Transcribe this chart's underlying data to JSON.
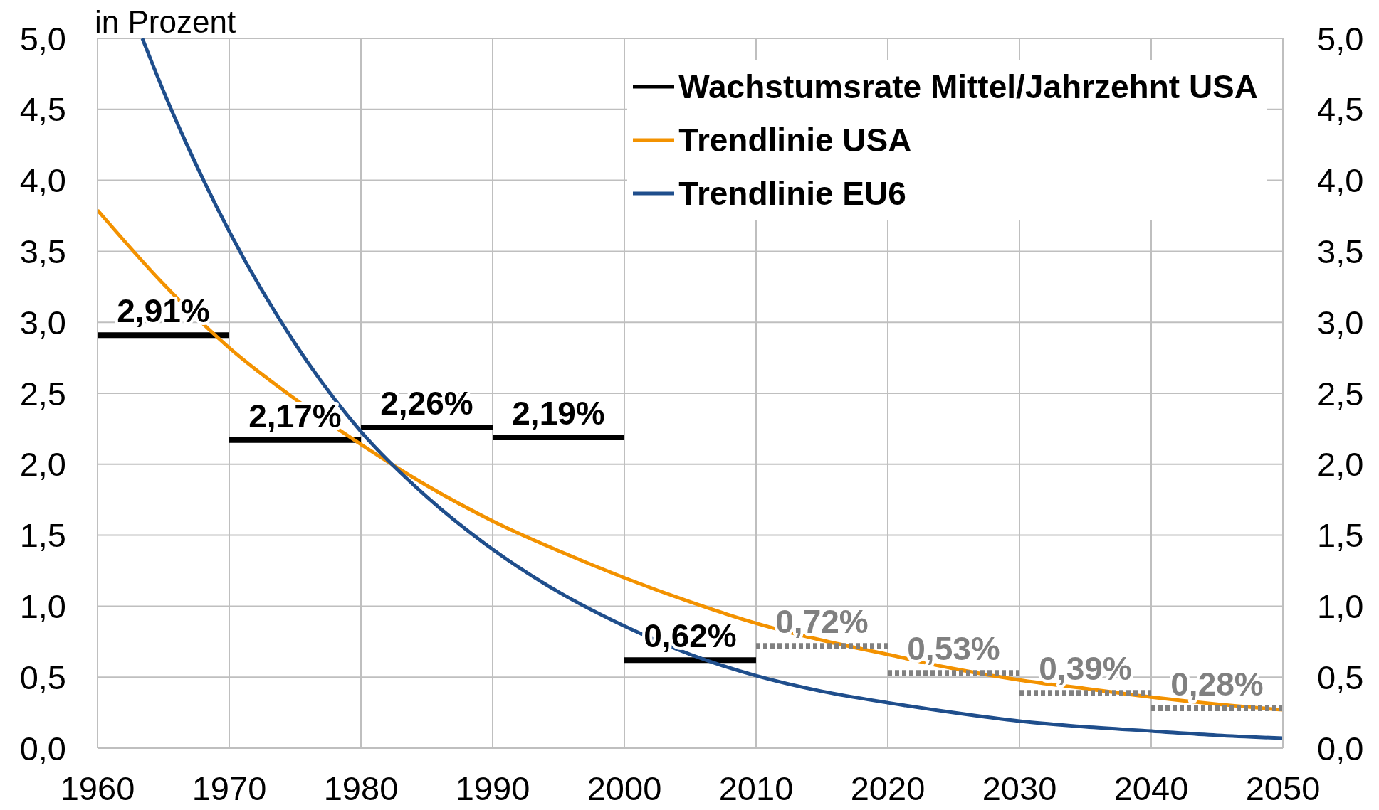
{
  "chart_data": {
    "type": "line",
    "ylabel": "in Prozent",
    "xlim": [
      1960,
      2050
    ],
    "xticks": [
      1960,
      1970,
      1980,
      1990,
      2000,
      2010,
      2020,
      2030,
      2040,
      2050
    ],
    "ylim": [
      0,
      5
    ],
    "yticks": [
      {
        "value": 0,
        "label": "0,0"
      },
      {
        "value": 0.5,
        "label": "0,5"
      },
      {
        "value": 1,
        "label": "1,0"
      },
      {
        "value": 1.5,
        "label": "1,5"
      },
      {
        "value": 2,
        "label": "2,0"
      },
      {
        "value": 2.5,
        "label": "2,5"
      },
      {
        "value": 3,
        "label": "3,0"
      },
      {
        "value": 3.5,
        "label": "3,5"
      },
      {
        "value": 4,
        "label": "4,0"
      },
      {
        "value": 4.5,
        "label": "4,5"
      },
      {
        "value": 5,
        "label": "5,0"
      }
    ],
    "y2lim": [
      0,
      5
    ],
    "y2ticks": [
      {
        "value": 0,
        "label": "0,0"
      },
      {
        "value": 0.5,
        "label": "0,5"
      },
      {
        "value": 1,
        "label": "1,0"
      },
      {
        "value": 1.5,
        "label": "1,5"
      },
      {
        "value": 2,
        "label": "2,0"
      },
      {
        "value": 2.5,
        "label": "2,5"
      },
      {
        "value": 3,
        "label": "3,0"
      },
      {
        "value": 3.5,
        "label": "3,5"
      },
      {
        "value": 4,
        "label": "4,0"
      },
      {
        "value": 4.5,
        "label": "4,5"
      },
      {
        "value": 5,
        "label": "5,0"
      }
    ],
    "grid": true,
    "legend": "top right",
    "series": [
      {
        "name": "Wachstumsrate Mittel/Jahrzehnt USA",
        "color": "#000000",
        "x": [
          1960,
          1970,
          null,
          1970,
          1980,
          null,
          1980,
          1990,
          null,
          1990,
          2000,
          null,
          2000,
          2010
        ],
        "values": [
          2.91,
          2.91,
          null,
          2.17,
          2.17,
          null,
          2.26,
          2.26,
          null,
          2.19,
          2.19,
          null,
          0.62,
          0.62
        ],
        "value_labels": [
          "2,91%",
          null,
          null,
          "2,17%",
          null,
          null,
          "2,26%",
          null,
          null,
          "2,19%",
          null,
          null,
          "0,62%",
          null
        ]
      },
      {
        "name": "Trendlinie USA",
        "color": "#f39200",
        "x": [
          1960,
          1965,
          1970,
          1975,
          1980,
          1985,
          1990,
          1995,
          2000,
          2005,
          2010,
          2015,
          2020,
          2025,
          2030,
          2035,
          2040,
          2045,
          2050
        ],
        "values": [
          3.79,
          3.27,
          2.82,
          2.46,
          2.14,
          1.85,
          1.6,
          1.39,
          1.2,
          1.03,
          0.88,
          0.76,
          0.66,
          0.56,
          0.48,
          0.42,
          0.36,
          0.31,
          0.27
        ]
      },
      {
        "name": "Trendlinie EU6",
        "color": "#1f4e8c",
        "x": [
          1963.4,
          1965,
          1970,
          1975,
          1980,
          1985,
          1990,
          1995,
          2000,
          2005,
          2010,
          2015,
          2020,
          2025,
          2030,
          2035,
          2040,
          2045,
          2050
        ],
        "values": [
          5.0,
          4.63,
          3.64,
          2.85,
          2.23,
          1.77,
          1.4,
          1.1,
          0.86,
          0.66,
          0.51,
          0.4,
          0.32,
          0.25,
          0.19,
          0.15,
          0.12,
          0.09,
          0.07
        ]
      },
      {
        "color": "#808080",
        "line_style": "dotted",
        "x": [
          2010,
          2020,
          null,
          2020,
          2030,
          null,
          2030,
          2040,
          null,
          2040,
          2050
        ],
        "values": [
          0.72,
          0.72,
          null,
          0.53,
          0.53,
          null,
          0.39,
          0.39,
          null,
          0.28,
          0.28
        ],
        "value_labels": [
          "0,72%",
          null,
          null,
          "0,53%",
          null,
          null,
          "0,39%",
          null,
          null,
          "0,28%",
          null
        ]
      }
    ]
  }
}
